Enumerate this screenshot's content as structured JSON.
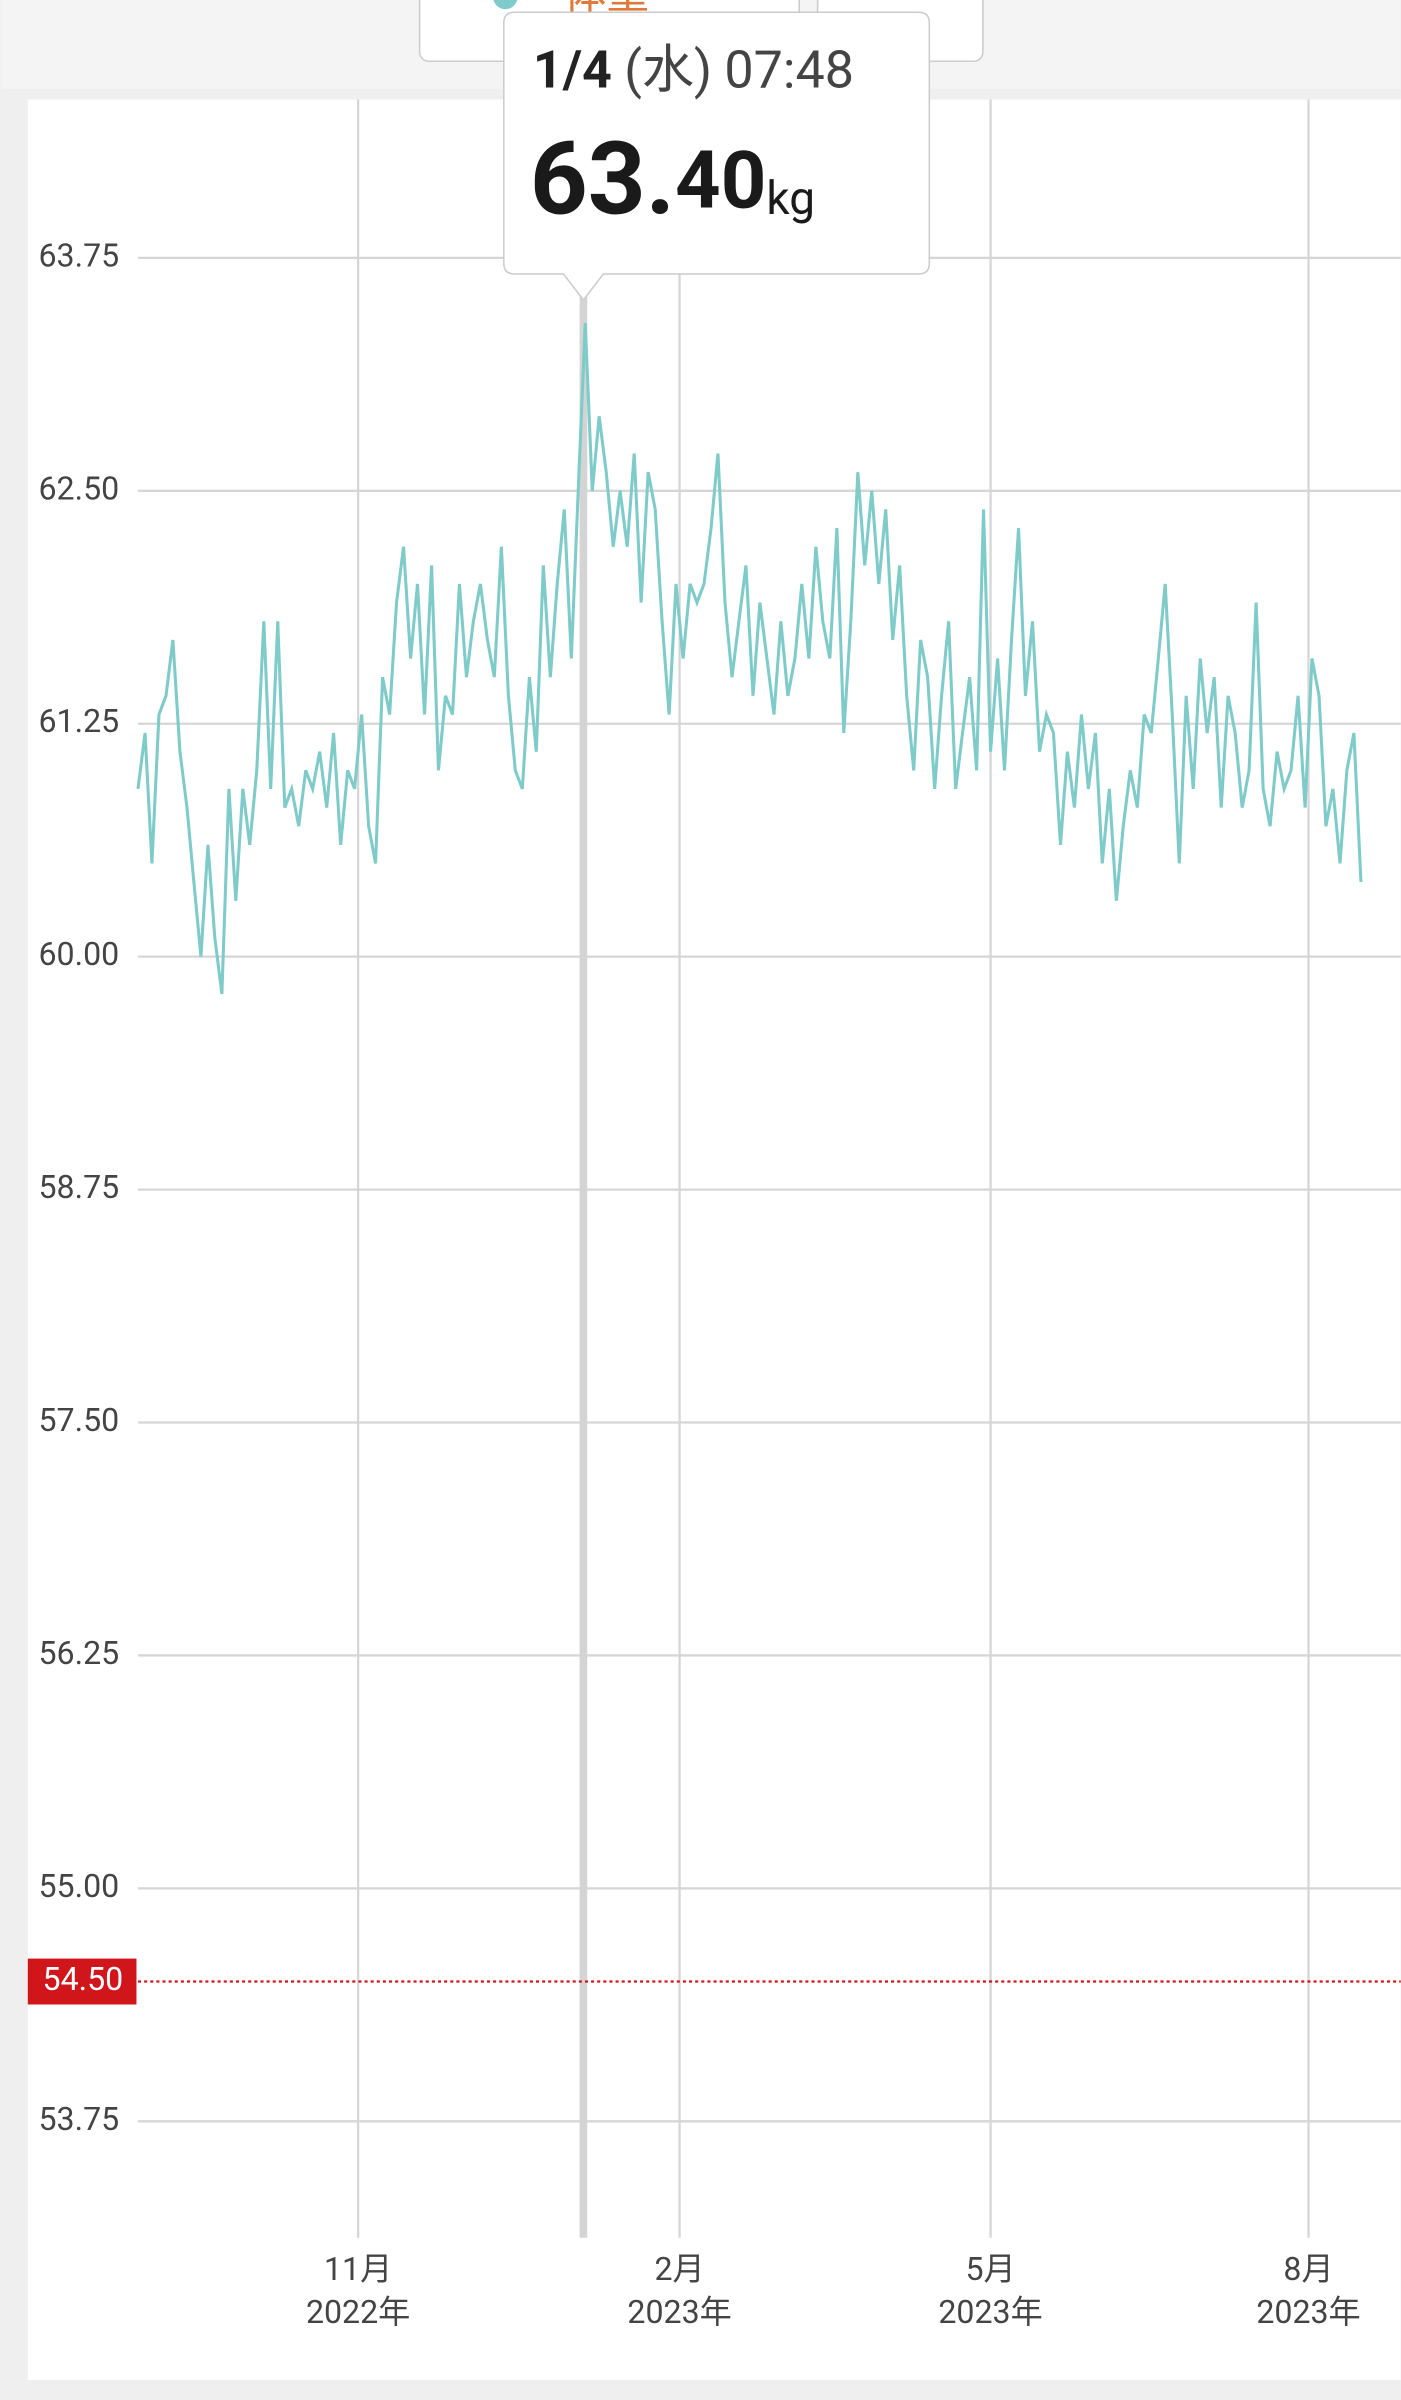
{
  "header": {
    "tab": "体重"
  },
  "chart_data": {
    "type": "line",
    "series": [
      {
        "name": "体重",
        "color": "#7ecbc9",
        "values": [
          60.9,
          61.2,
          60.5,
          61.3,
          61.4,
          61.7,
          61.1,
          60.8,
          60.4,
          60.0,
          60.6,
          60.1,
          59.8,
          60.9,
          60.3,
          60.9,
          60.6,
          61.0,
          61.8,
          60.9,
          61.8,
          60.8,
          60.9,
          60.7,
          61.0,
          60.9,
          61.1,
          60.8,
          61.2,
          60.6,
          61.0,
          60.9,
          61.3,
          60.7,
          60.5,
          61.5,
          61.3,
          61.9,
          62.2,
          61.6,
          62.0,
          61.3,
          62.1,
          61.0,
          61.4,
          61.3,
          62.0,
          61.5,
          61.8,
          62.0,
          61.7,
          61.5,
          62.2,
          61.4,
          61.0,
          60.9,
          61.5,
          61.1,
          62.1,
          61.5,
          62.0,
          62.4,
          61.6,
          62.5,
          63.4,
          62.5,
          62.9,
          62.6,
          62.2,
          62.5,
          62.2,
          62.7,
          61.9,
          62.6,
          62.4,
          61.8,
          61.3,
          62.0,
          61.6,
          62.0,
          61.9,
          62.0,
          62.3,
          62.7,
          61.9,
          61.5,
          61.8,
          62.1,
          61.4,
          61.9,
          61.6,
          61.3,
          61.8,
          61.4,
          61.6,
          62.0,
          61.6,
          62.2,
          61.8,
          61.6,
          62.3,
          61.2,
          61.8,
          62.6,
          62.1,
          62.5,
          62.0,
          62.4,
          61.7,
          62.1,
          61.4,
          61.0,
          61.7,
          61.5,
          60.9,
          61.4,
          61.8,
          60.9,
          61.2,
          61.5,
          61.0,
          62.4,
          61.1,
          61.6,
          61.0,
          61.7,
          62.3,
          61.4,
          61.8,
          61.1,
          61.3,
          61.2,
          60.6,
          61.1,
          60.8,
          61.3,
          60.9,
          61.2,
          60.5,
          60.9,
          60.3,
          60.7,
          61.0,
          60.8,
          61.3,
          61.2,
          61.6,
          62.0,
          61.3,
          60.5,
          61.4,
          60.9,
          61.6,
          61.2,
          61.5,
          60.8,
          61.4,
          61.2,
          60.8,
          61.0,
          61.9,
          60.9,
          60.7,
          61.1,
          60.9,
          61.0,
          61.4,
          60.8,
          61.6,
          61.4,
          60.7,
          60.9,
          60.5,
          61.0,
          61.2,
          60.4
        ]
      }
    ],
    "xlim": [
      0,
      180.7
    ],
    "xticks": [
      {
        "value": 31.5,
        "label": "11月",
        "sublabel": "2022年"
      },
      {
        "value": 77.5,
        "label": "2月",
        "sublabel": "2023年"
      },
      {
        "value": 122,
        "label": "5月",
        "sublabel": "2023年"
      },
      {
        "value": 167.5,
        "label": "8月",
        "sublabel": "2023年"
      }
    ],
    "ylim": [
      53.24,
      64.6
    ],
    "yticks": [
      {
        "value": 53.75,
        "label": "53.75"
      },
      {
        "value": 55,
        "label": "55.00"
      },
      {
        "value": 56.25,
        "label": "56.25"
      },
      {
        "value": 57.5,
        "label": "57.50"
      },
      {
        "value": 58.75,
        "label": "58.75"
      },
      {
        "value": 60,
        "label": "60.00"
      },
      {
        "value": 61.25,
        "label": "61.25"
      },
      {
        "value": 62.5,
        "label": "62.50"
      },
      {
        "value": 63.75,
        "label": "63.75"
      }
    ],
    "grid": true,
    "target": {
      "value": 54.5,
      "label": "54.50",
      "color": "#d0151b"
    },
    "tooltip": {
      "date": "1/4",
      "weekday": "(水)",
      "time": "07:48",
      "value_int": "63.",
      "value_dec": "40",
      "unit": "kg"
    }
  }
}
